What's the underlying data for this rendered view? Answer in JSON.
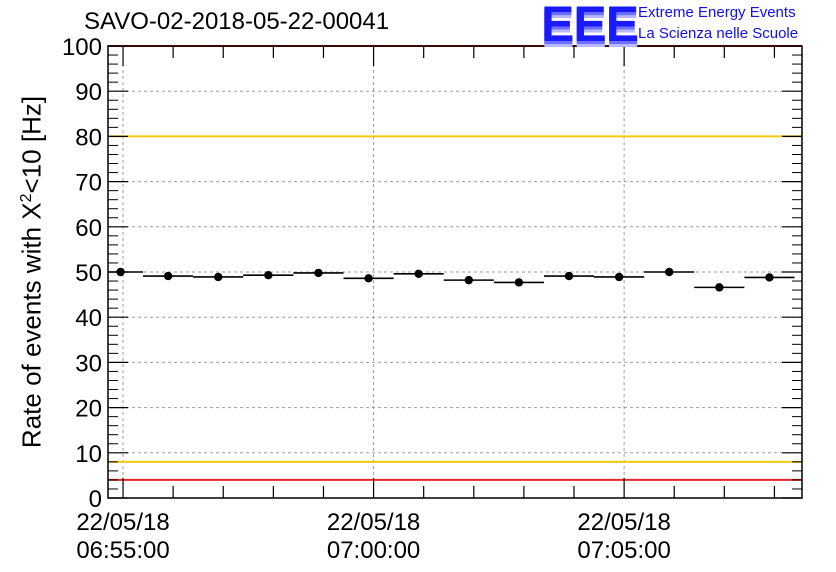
{
  "header": {
    "run_title": "SAVO-02-2018-05-22-00041"
  },
  "logo": {
    "letters": "EEE",
    "line1": "Extreme Energy Events",
    "line2": "La Scienza nelle Scuole"
  },
  "colors": {
    "red_line": "#e8262b",
    "yellow_line": "#f2c80f",
    "grid": "#9e9e9e",
    "marker": "#000000",
    "logo_blue": "#1a1aff"
  },
  "chart_data": {
    "type": "scatter",
    "title": "SAVO-02-2018-05-22-00041",
    "xlabel": "",
    "ylabel_prefix": "Rate of events with X",
    "ylabel_sup": "2",
    "ylabel_suffix": "<10 [Hz]",
    "ylim": [
      0,
      100
    ],
    "y_ticks": [
      "0",
      "10",
      "20",
      "30",
      "40",
      "50",
      "60",
      "70",
      "80",
      "90",
      "100"
    ],
    "x_range_minutes": [
      -0.3,
      13.55
    ],
    "x_tick_labels": [
      {
        "minute": 0,
        "date": "22/05/18",
        "time": "06:55:00"
      },
      {
        "minute": 5,
        "date": "22/05/18",
        "time": "07:00:00"
      },
      {
        "minute": 10,
        "date": "22/05/18",
        "time": "07:05:00"
      }
    ],
    "reference_lines": [
      {
        "value": 100,
        "color": "red"
      },
      {
        "value": 80,
        "color": "yellow"
      },
      {
        "value": 8,
        "color": "yellow"
      },
      {
        "value": 4,
        "color": "red"
      }
    ],
    "grid": true,
    "points": [
      {
        "x_start": -0.3,
        "x_end": 0.4,
        "x": -0.05,
        "y": 50.0
      },
      {
        "x_start": 0.4,
        "x_end": 1.4,
        "x": 0.9,
        "y": 49.1
      },
      {
        "x_start": 1.4,
        "x_end": 2.4,
        "x": 1.9,
        "y": 48.9
      },
      {
        "x_start": 2.4,
        "x_end": 3.4,
        "x": 2.9,
        "y": 49.3
      },
      {
        "x_start": 3.4,
        "x_end": 4.4,
        "x": 3.9,
        "y": 49.8
      },
      {
        "x_start": 4.4,
        "x_end": 5.4,
        "x": 4.9,
        "y": 48.6
      },
      {
        "x_start": 5.4,
        "x_end": 6.4,
        "x": 5.9,
        "y": 49.6
      },
      {
        "x_start": 6.4,
        "x_end": 7.4,
        "x": 6.9,
        "y": 48.2
      },
      {
        "x_start": 7.4,
        "x_end": 8.4,
        "x": 7.9,
        "y": 47.7
      },
      {
        "x_start": 8.4,
        "x_end": 9.4,
        "x": 8.9,
        "y": 49.1
      },
      {
        "x_start": 9.4,
        "x_end": 10.4,
        "x": 9.9,
        "y": 48.9
      },
      {
        "x_start": 10.4,
        "x_end": 11.4,
        "x": 10.9,
        "y": 50.0
      },
      {
        "x_start": 11.4,
        "x_end": 12.4,
        "x": 11.9,
        "y": 46.6
      },
      {
        "x_start": 12.4,
        "x_end": 13.4,
        "x": 12.9,
        "y": 48.8
      }
    ]
  }
}
